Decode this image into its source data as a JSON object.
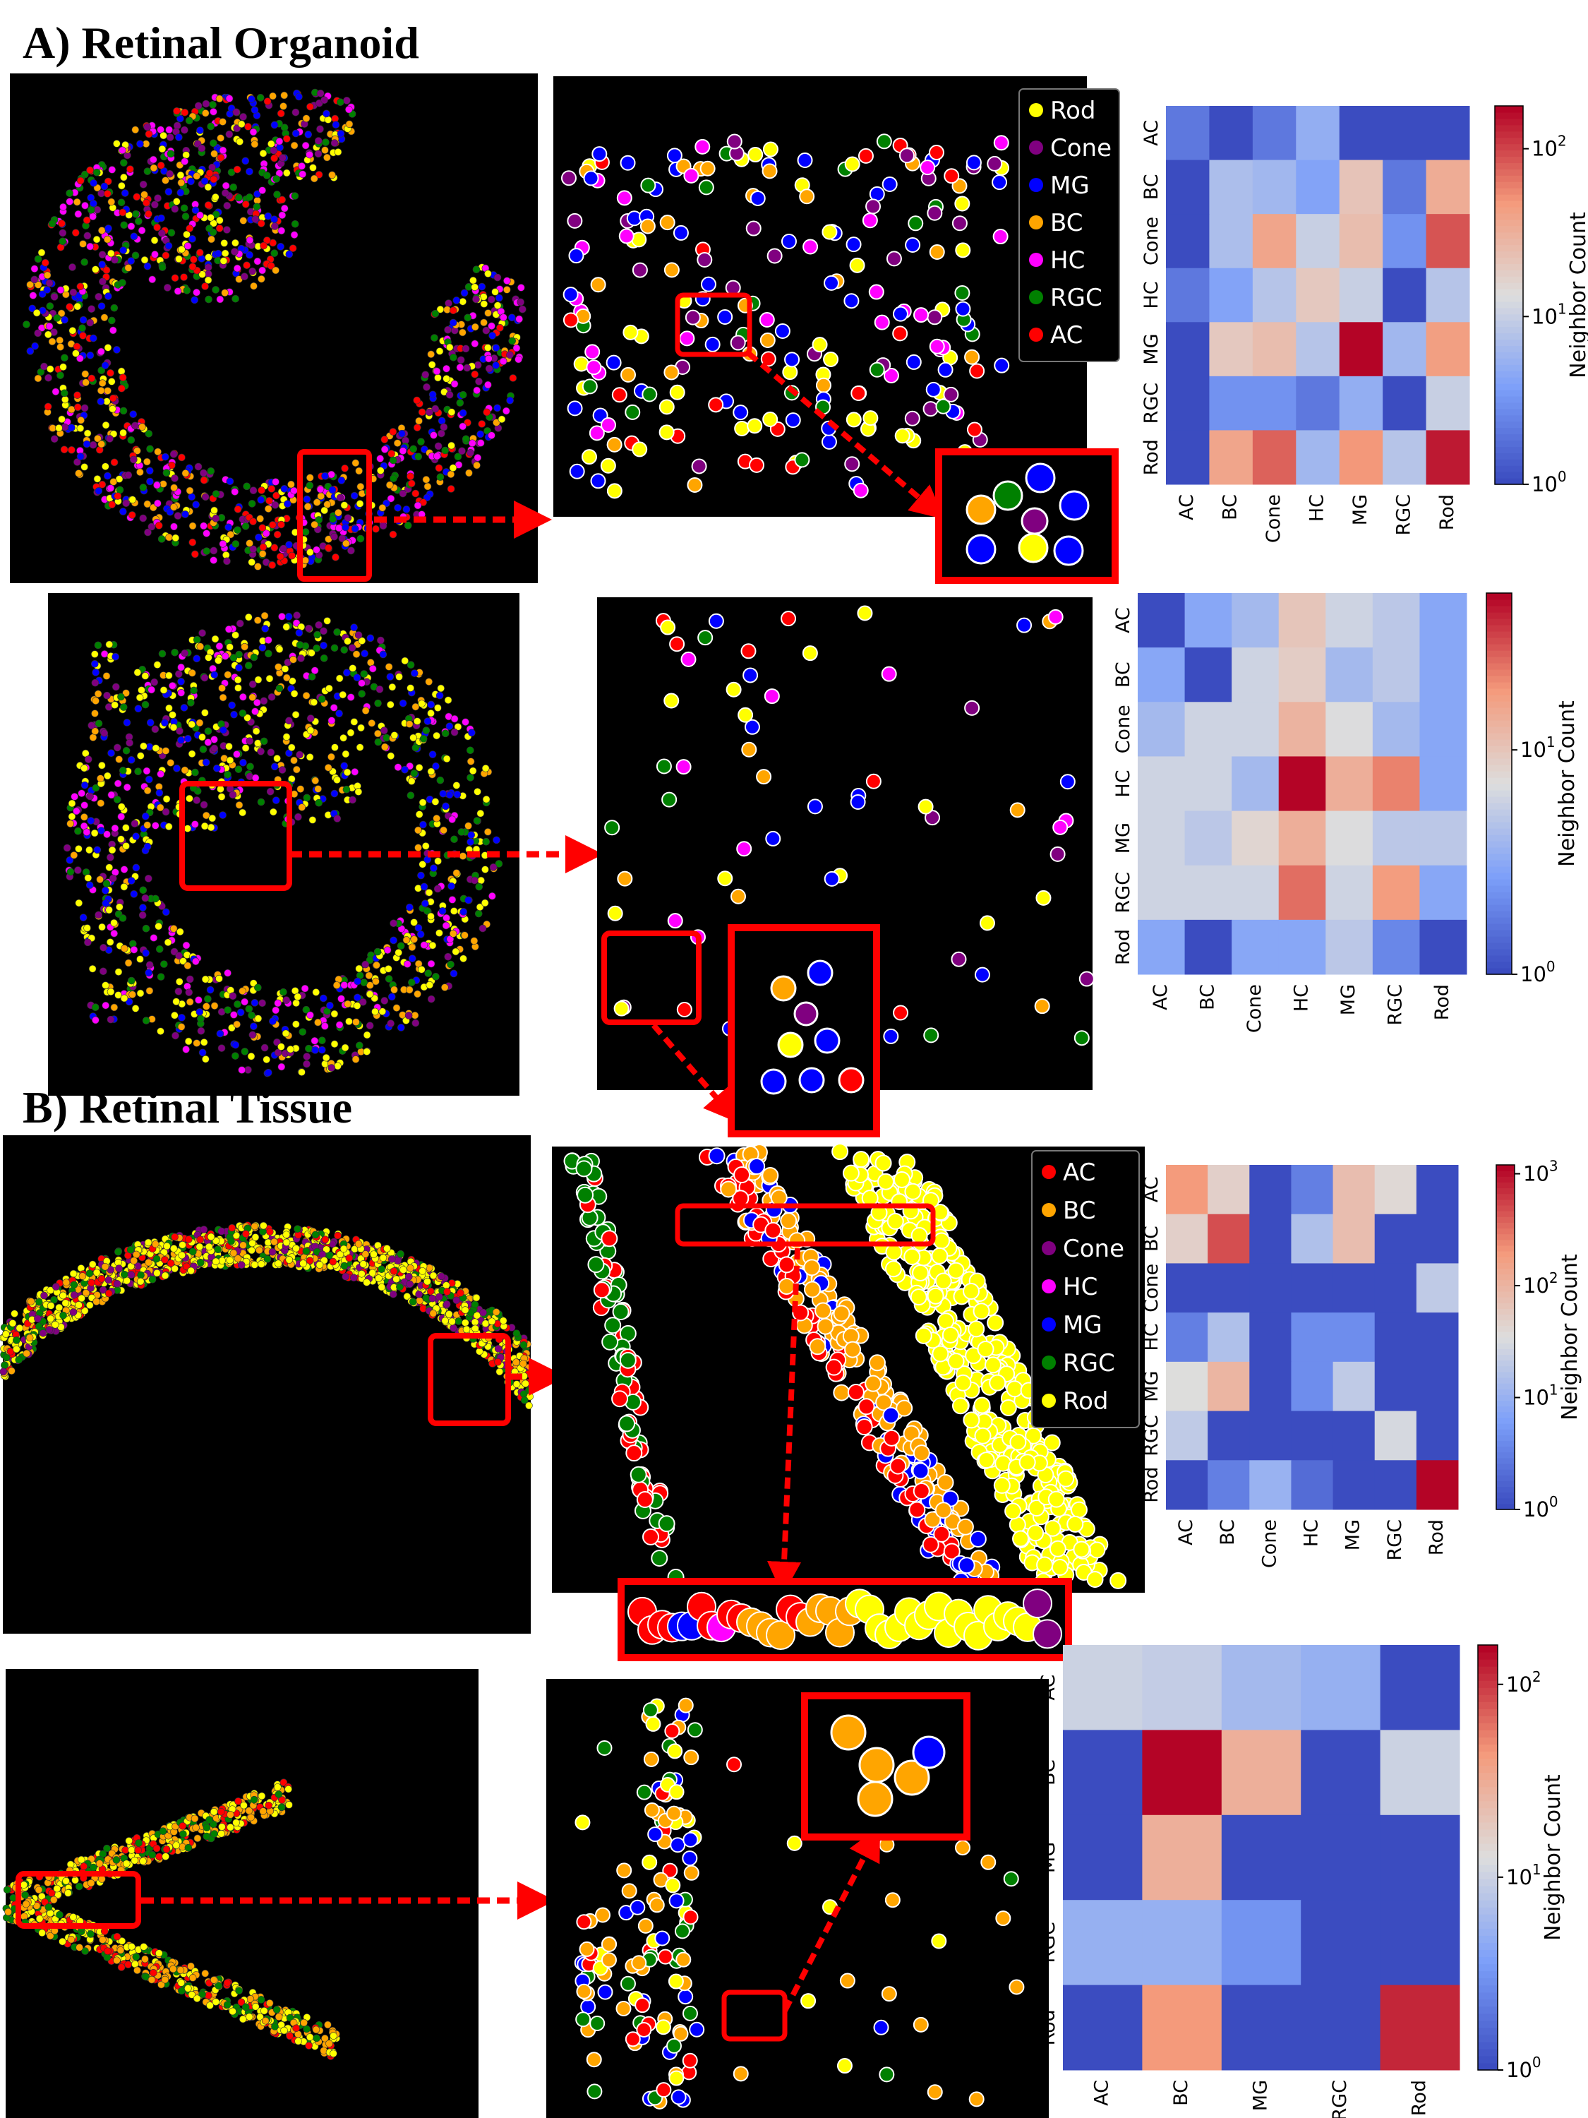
{
  "sections": {
    "a_title": "A) Retinal Organoid",
    "b_title": "B) Retinal Tissue"
  },
  "colors": {
    "Rod": "#ffff00",
    "Cone": "#800080",
    "MG": "#0000ff",
    "BC": "#ffa500",
    "HC": "#ff00ff",
    "RGC": "#008000",
    "AC": "#ff0000",
    "highlight_box": "#ff0000",
    "image_background": "#000000"
  },
  "legends": {
    "organoid": [
      "Rod",
      "Cone",
      "MG",
      "BC",
      "HC",
      "RGC",
      "AC"
    ],
    "tissue": [
      "AC",
      "BC",
      "Cone",
      "HC",
      "MG",
      "RGC",
      "Rod"
    ]
  },
  "colorbar_label": "Neighbor Count",
  "chart_data": [
    {
      "type": "heatmap",
      "panel": "A1",
      "rows": [
        "AC",
        "BC",
        "Cone",
        "HC",
        "MG",
        "RGC",
        "Rod"
      ],
      "cols": [
        "AC",
        "BC",
        "Cone",
        "HC",
        "MG",
        "RGC",
        "Rod"
      ],
      "scale": "log",
      "colormap": "coolwarm",
      "vmin": 1,
      "vmax": 180,
      "colorbar_ticks": [
        {
          "v": 100,
          "base": "10",
          "exp": "2"
        },
        {
          "v": 10,
          "base": "10",
          "exp": "1"
        },
        {
          "v": 1,
          "base": "10",
          "exp": "0"
        }
      ],
      "colorbar_label": "Neighbor Count",
      "values": [
        [
          2,
          1,
          2,
          5,
          1,
          1,
          1
        ],
        [
          1,
          7,
          6,
          4,
          22,
          2,
          35
        ],
        [
          1,
          7,
          40,
          10,
          25,
          3,
          90
        ],
        [
          2,
          4,
          8,
          20,
          10,
          1,
          8
        ],
        [
          1,
          20,
          25,
          8,
          180,
          6,
          45
        ],
        [
          1,
          3,
          3,
          2,
          5,
          1,
          10
        ],
        [
          1,
          40,
          80,
          6,
          50,
          8,
          150
        ]
      ]
    },
    {
      "type": "heatmap",
      "panel": "A2",
      "rows": [
        "AC",
        "BC",
        "Cone",
        "HC",
        "MG",
        "RGC",
        "Rod"
      ],
      "cols": [
        "AC",
        "BC",
        "Cone",
        "HC",
        "MG",
        "RGC",
        "Rod"
      ],
      "scale": "log",
      "colormap": "coolwarm",
      "vmin": 1,
      "vmax": 50,
      "colorbar_ticks": [
        {
          "v": 10,
          "base": "10",
          "exp": "1"
        },
        {
          "v": 1,
          "base": "10",
          "exp": "0"
        }
      ],
      "colorbar_label": "Neighbor Count",
      "values": [
        [
          1,
          3,
          4,
          10,
          6,
          5,
          3
        ],
        [
          3,
          1,
          6,
          9,
          4,
          5,
          3
        ],
        [
          4,
          6,
          6,
          13,
          7,
          4,
          3
        ],
        [
          6,
          6,
          4,
          50,
          14,
          22,
          3
        ],
        [
          6,
          5,
          8,
          14,
          7,
          5,
          5
        ],
        [
          6,
          6,
          6,
          25,
          6,
          18,
          3
        ],
        [
          3,
          1,
          3,
          3,
          5,
          2,
          1
        ]
      ]
    },
    {
      "type": "heatmap",
      "panel": "B1",
      "rows": [
        "AC",
        "BC",
        "Cone",
        "HC",
        "MG",
        "RGC",
        "Rod"
      ],
      "cols": [
        "AC",
        "BC",
        "Cone",
        "HC",
        "MG",
        "RGC",
        "Rod"
      ],
      "scale": "log",
      "colormap": "coolwarm",
      "vmin": 1,
      "vmax": 1200,
      "colorbar_ticks": [
        {
          "v": 1000,
          "base": "10",
          "exp": "3"
        },
        {
          "v": 100,
          "base": "10",
          "exp": "2"
        },
        {
          "v": 10,
          "base": "10",
          "exp": "1"
        },
        {
          "v": 1,
          "base": "10",
          "exp": "0"
        }
      ],
      "colorbar_label": "Neighbor Count",
      "values": [
        [
          200,
          50,
          1,
          3,
          80,
          40,
          1
        ],
        [
          50,
          500,
          1,
          15,
          80,
          1,
          1
        ],
        [
          1,
          1,
          1,
          1,
          1,
          1,
          20
        ],
        [
          3,
          15,
          1,
          4,
          4,
          1,
          1
        ],
        [
          35,
          100,
          1,
          4,
          20,
          1,
          1
        ],
        [
          20,
          1,
          1,
          1,
          1,
          30,
          1
        ],
        [
          1,
          3,
          10,
          2,
          1,
          1,
          1200
        ]
      ]
    },
    {
      "type": "heatmap",
      "panel": "B2",
      "rows": [
        "AC",
        "BC",
        "MG",
        "RGC",
        "Rod"
      ],
      "cols": [
        "AC",
        "BC",
        "MG",
        "RGC",
        "Rod"
      ],
      "scale": "log",
      "colormap": "coolwarm",
      "vmin": 1,
      "vmax": 160,
      "colorbar_ticks": [
        {
          "v": 100,
          "base": "10",
          "exp": "2"
        },
        {
          "v": 10,
          "base": "10",
          "exp": "1"
        },
        {
          "v": 1,
          "base": "10",
          "exp": "0"
        }
      ],
      "colorbar_label": "Neighbor Count",
      "values": [
        [
          10,
          9,
          6,
          5,
          1
        ],
        [
          1,
          160,
          30,
          1,
          10
        ],
        [
          1,
          30,
          1,
          1,
          1
        ],
        [
          5,
          5,
          3,
          1,
          1
        ],
        [
          1,
          45,
          1,
          1,
          120
        ]
      ]
    }
  ]
}
